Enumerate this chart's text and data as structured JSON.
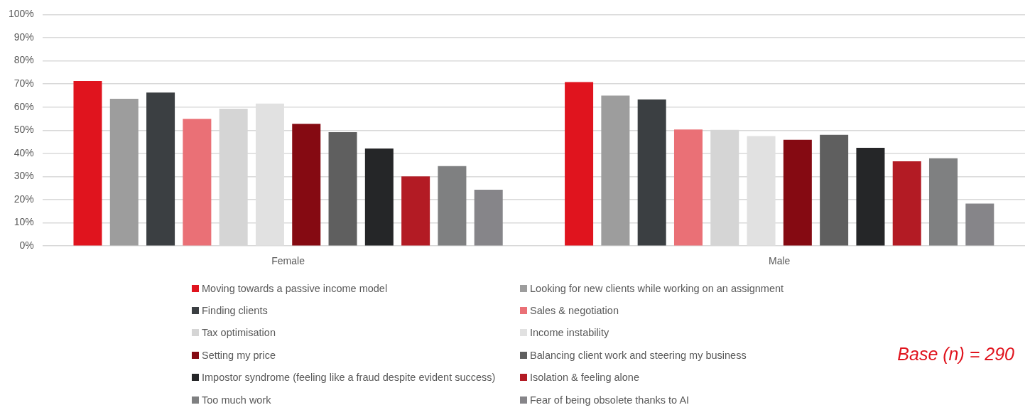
{
  "chart_data": {
    "type": "bar",
    "categories": [
      "Female",
      "Male"
    ],
    "series": [
      {
        "name": "Moving towards a passive income model",
        "color": "#e0141e",
        "values": [
          71.3,
          70.8
        ]
      },
      {
        "name": "Looking for new clients while working on an assignment",
        "color": "#9d9d9d",
        "values": [
          63.6,
          65.0
        ]
      },
      {
        "name": "Finding clients",
        "color": "#3b3f42",
        "values": [
          66.3,
          63.3
        ]
      },
      {
        "name": "Sales & negotiation",
        "color": "#ea7076",
        "values": [
          54.9,
          50.3
        ]
      },
      {
        "name": "Tax optimisation",
        "color": "#d5d5d5",
        "values": [
          59.3,
          50.2
        ]
      },
      {
        "name": "Income instability",
        "color": "#e1e1e1",
        "values": [
          61.5,
          47.5
        ]
      },
      {
        "name": "Setting my price",
        "color": "#850a12",
        "values": [
          52.8,
          45.9
        ]
      },
      {
        "name": "Balancing client work and steering my business",
        "color": "#5f5f5f",
        "values": [
          49.2,
          48.0
        ]
      },
      {
        "name": "Impostor syndrome (feeling like a fraud despite evident success)",
        "color": "#252628",
        "values": [
          42.1,
          42.4
        ]
      },
      {
        "name": "Isolation & feeling alone",
        "color": "#b31b24",
        "values": [
          30.1,
          36.6
        ]
      },
      {
        "name": "Too much work",
        "color": "#7f8081",
        "values": [
          34.5,
          37.9
        ]
      },
      {
        "name": "Fear of being obsolete thanks to AI",
        "color": "#868589",
        "values": [
          24.3,
          18.3
        ]
      }
    ],
    "ylim": [
      0,
      100
    ],
    "yticks": [
      {
        "value": 0,
        "label": "0%"
      },
      {
        "value": 10,
        "label": "10%"
      },
      {
        "value": 20,
        "label": "20%"
      },
      {
        "value": 30,
        "label": "30%"
      },
      {
        "value": 40,
        "label": "40%"
      },
      {
        "value": 50,
        "label": "50%"
      },
      {
        "value": 60,
        "label": "60%"
      },
      {
        "value": 70,
        "label": "70%"
      },
      {
        "value": 80,
        "label": "80%"
      },
      {
        "value": 90,
        "label": "90%"
      },
      {
        "value": 100,
        "label": "100%"
      }
    ],
    "grid": "y",
    "legend": "bottom",
    "annotations": [
      "Base (n) = 290"
    ]
  }
}
